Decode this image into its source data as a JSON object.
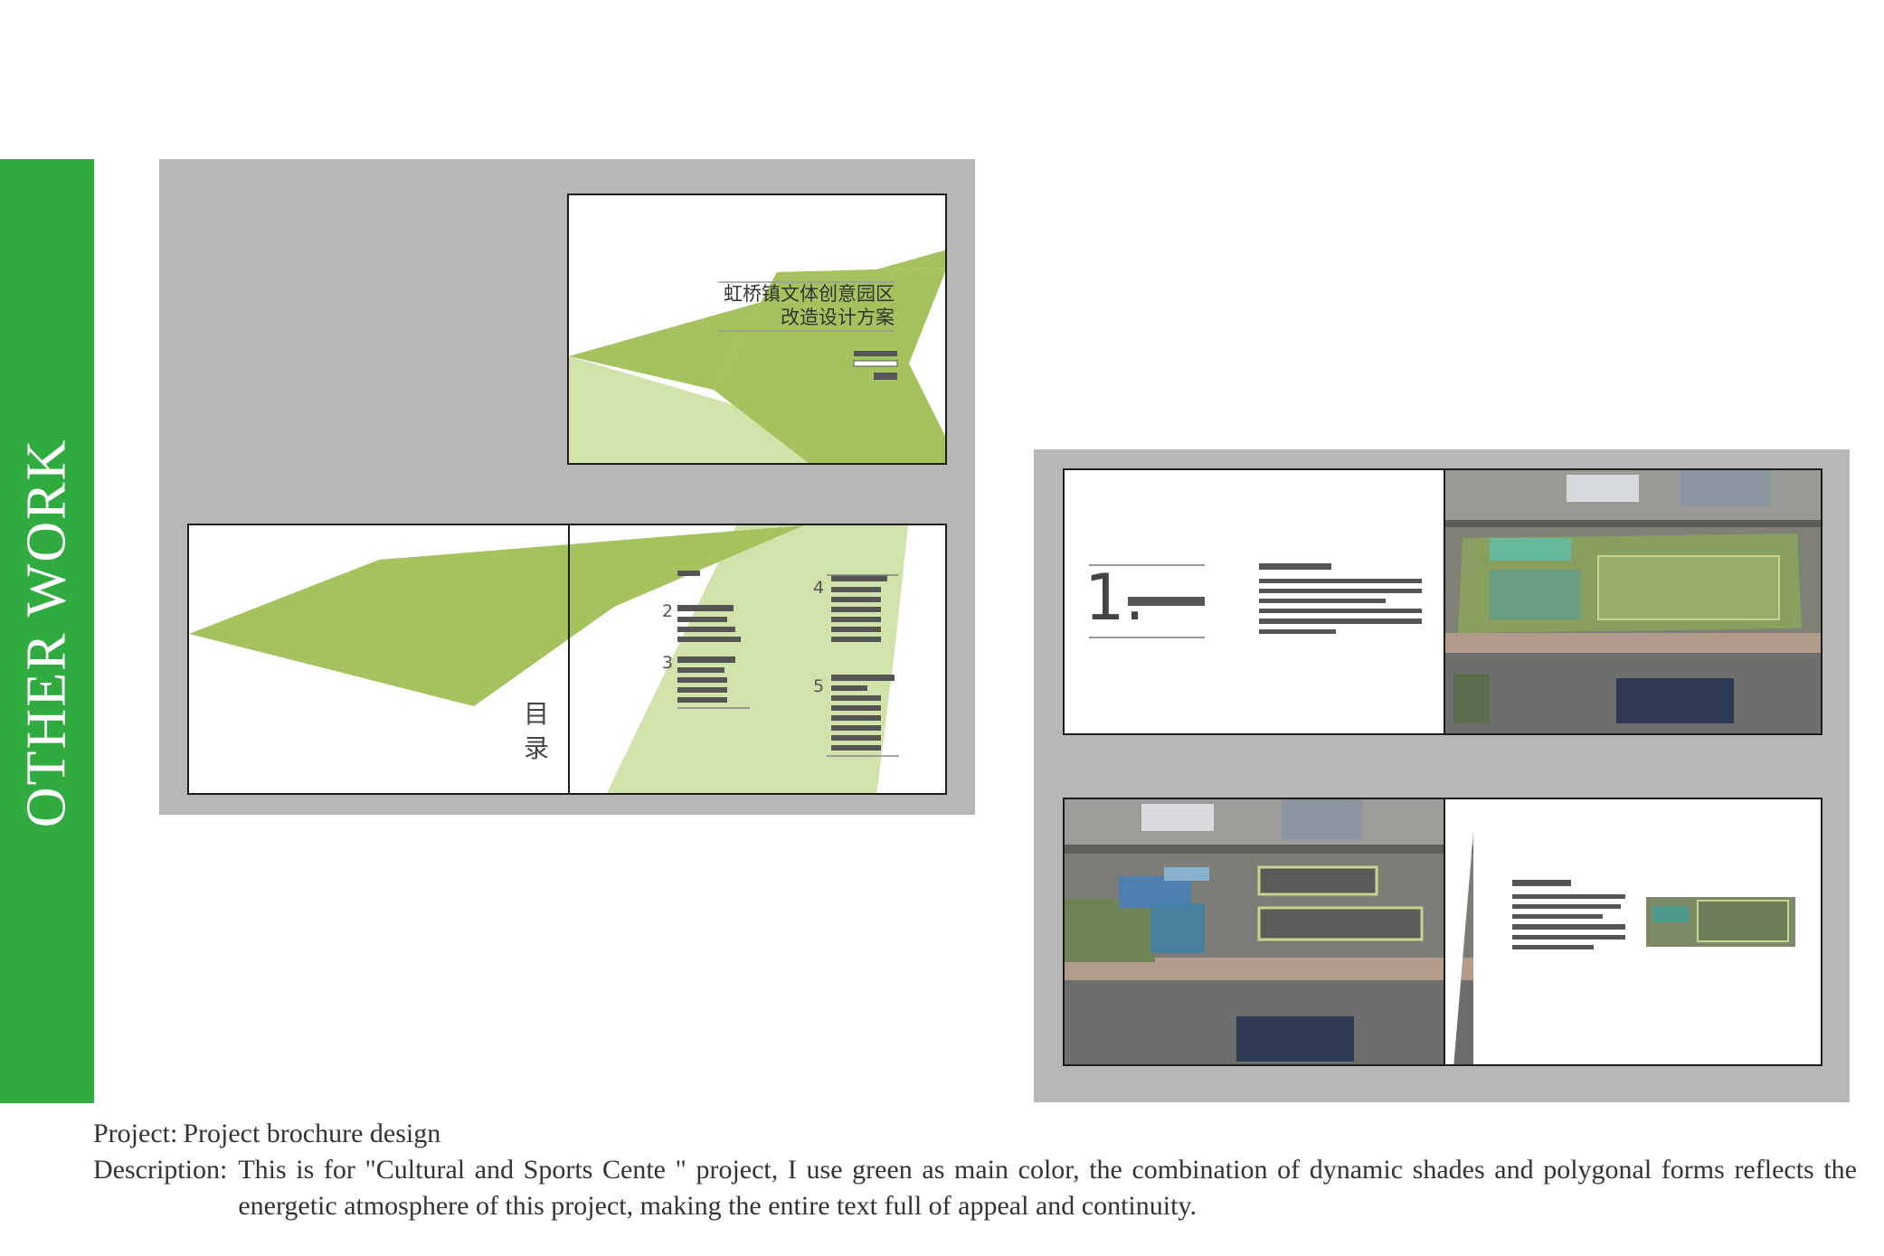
{
  "sidebar": {
    "title": "OTHER WORK"
  },
  "spread_cover": {
    "title_line1": "虹桥镇文体创意园区",
    "title_line2": "改造设计方案"
  },
  "spread_toc": {
    "heading_char1": "目",
    "heading_char2": "录",
    "items": [
      "2",
      "3",
      "4",
      "5"
    ]
  },
  "spread_chapter": {
    "chapter_number": "1."
  },
  "caption": {
    "project_label": "Project:",
    "project_value": "Project brochure design",
    "description_label": "Description:",
    "description_value": "This is for \"Cultural and Sports Cente \" project, I use green as main color, the combination of dynamic shades and polygonal forms reflects the energetic atmosphere of this project, making the entire text full of appeal and continuity."
  },
  "colors": {
    "brand_green": "#2fab3f",
    "leaf_green": "#a4c25e",
    "light_green": "#d2e2ab",
    "board_gray": "#b7b7b7"
  }
}
